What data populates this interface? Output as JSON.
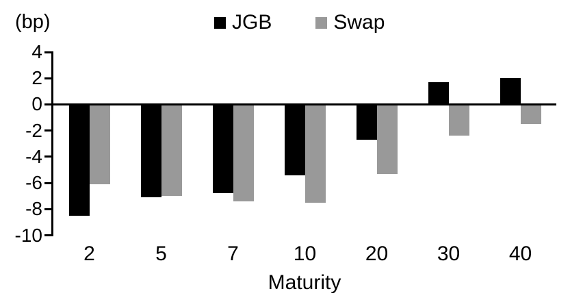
{
  "chart_data": {
    "type": "bar",
    "title": "",
    "unit_label": "(bp)",
    "xlabel": "Maturity",
    "ylabel": "",
    "categories": [
      "2",
      "5",
      "7",
      "10",
      "20",
      "30",
      "40"
    ],
    "series": [
      {
        "name": "JGB",
        "color": "#000000",
        "values": [
          -8.5,
          -7.1,
          -6.8,
          -5.4,
          -2.7,
          1.7,
          2.0
        ]
      },
      {
        "name": "Swap",
        "color": "#999999",
        "values": [
          -6.1,
          -7.0,
          -7.4,
          -7.5,
          -5.3,
          -2.4,
          -1.5
        ]
      }
    ],
    "yticks": [
      4,
      2,
      0,
      -2,
      -4,
      -6,
      -8,
      -10
    ],
    "ylim": [
      -10,
      4
    ],
    "legend_position": "top-center",
    "grid": false,
    "axis_color": "#000000",
    "background_color": "#ffffff"
  }
}
